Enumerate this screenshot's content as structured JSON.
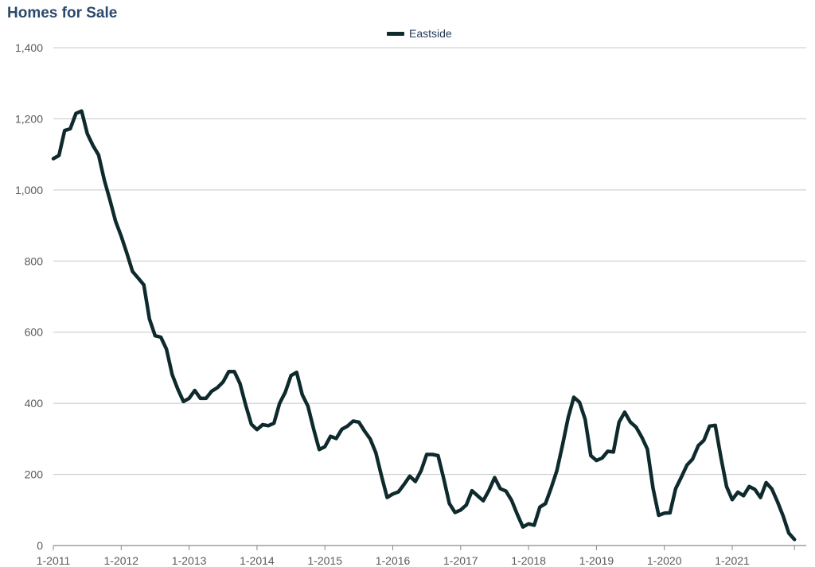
{
  "chart_data": {
    "type": "line",
    "title": "Homes for Sale",
    "xlabel": "",
    "ylabel": "",
    "ylim": [
      0,
      1400
    ],
    "yticks": [
      0,
      200,
      400,
      600,
      800,
      1000,
      1200,
      1400
    ],
    "ytick_labels": [
      "0",
      "200",
      "400",
      "600",
      "800",
      "1,000",
      "1,200",
      "1,400"
    ],
    "xlim": [
      "1-2011",
      "12-2021"
    ],
    "xtick_labels": [
      "1-2011",
      "1-2012",
      "1-2013",
      "1-2014",
      "1-2015",
      "1-2016",
      "1-2017",
      "1-2018",
      "1-2019",
      "1-2020",
      "1-2021"
    ],
    "grid": true,
    "legend_position": "top-center",
    "colors": {
      "series": "#0e2a2c",
      "grid": "#c8c8c8",
      "title": "#2b4a6b"
    },
    "series": [
      {
        "name": "Eastside",
        "values": [
          1088,
          1097,
          1167,
          1172,
          1215,
          1222,
          1158,
          1125,
          1098,
          1028,
          972,
          912,
          870,
          822,
          771,
          752,
          733,
          637,
          590,
          586,
          552,
          481,
          440,
          405,
          414,
          436,
          414,
          414,
          434,
          444,
          460,
          489,
          489,
          455,
          395,
          341,
          326,
          340,
          337,
          344,
          400,
          431,
          478,
          487,
          424,
          392,
          328,
          270,
          278,
          307,
          301,
          327,
          336,
          350,
          347,
          322,
          300,
          261,
          196,
          135,
          145,
          151,
          172,
          195,
          180,
          210,
          256,
          256,
          253,
          188,
          118,
          93,
          100,
          114,
          154,
          140,
          126,
          155,
          191,
          160,
          153,
          127,
          88,
          52,
          61,
          57,
          108,
          118,
          162,
          210,
          283,
          360,
          417,
          403,
          355,
          253,
          239,
          246,
          265,
          263,
          347,
          375,
          347,
          333,
          305,
          271,
          161,
          85,
          91,
          92,
          160,
          192,
          226,
          243,
          281,
          296,
          336,
          338,
          248,
          166,
          129,
          150,
          140,
          166,
          158,
          135,
          177,
          159,
          123,
          83,
          35,
          17
        ]
      }
    ]
  }
}
